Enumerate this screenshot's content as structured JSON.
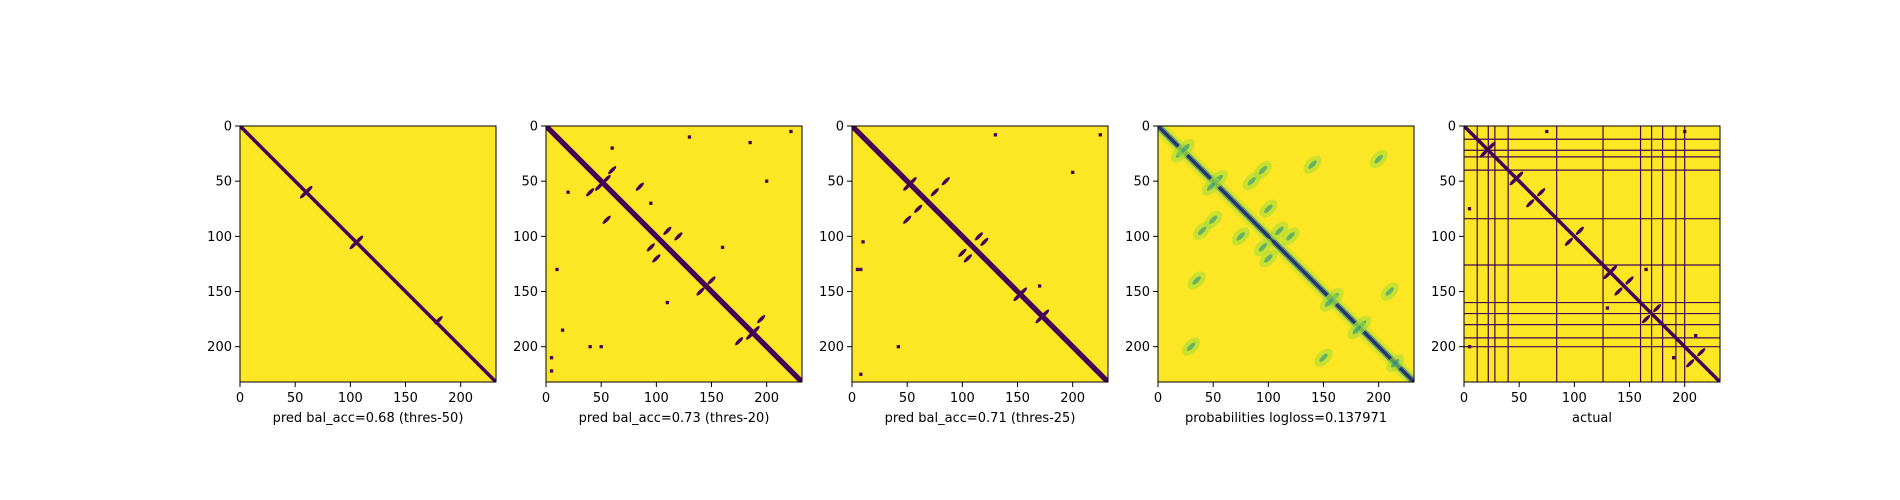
{
  "chart_data": [
    {
      "type": "heatmap",
      "title": "",
      "xlabel": "pred bal_acc=0.68 (thres-50)",
      "ylabel": "",
      "xlim": [
        0,
        232
      ],
      "ylim": [
        232,
        0
      ],
      "xticks": [
        0,
        50,
        100,
        150,
        200
      ],
      "yticks": [
        0,
        50,
        100,
        150,
        200
      ],
      "grid": false,
      "colormap": "viridis",
      "values": "binary",
      "diagonal_band": 2,
      "blobs": [
        [
          62,
          58
        ],
        [
          58,
          62
        ],
        [
          108,
          103
        ],
        [
          103,
          108
        ],
        [
          180,
          176
        ]
      ],
      "spots": []
    },
    {
      "type": "heatmap",
      "title": "",
      "xlabel": "pred bal_acc=0.73 (thres-20)",
      "ylabel": "",
      "xlim": [
        0,
        232
      ],
      "ylim": [
        232,
        0
      ],
      "xticks": [
        0,
        50,
        100,
        150,
        200
      ],
      "yticks": [
        0,
        50,
        100,
        150,
        200
      ],
      "grid": false,
      "colormap": "viridis",
      "values": "binary",
      "diagonal_band": 3,
      "blobs": [
        [
          55,
          48
        ],
        [
          48,
          55
        ],
        [
          85,
          55
        ],
        [
          55,
          85
        ],
        [
          95,
          110
        ],
        [
          110,
          95
        ],
        [
          120,
          100
        ],
        [
          100,
          120
        ],
        [
          140,
          150
        ],
        [
          150,
          140
        ],
        [
          185,
          190
        ],
        [
          190,
          185
        ],
        [
          175,
          195
        ],
        [
          195,
          175
        ],
        [
          60,
          40
        ],
        [
          40,
          60
        ]
      ],
      "spots": [
        [
          130,
          10
        ],
        [
          10,
          130
        ],
        [
          200,
          50
        ],
        [
          50,
          200
        ],
        [
          222,
          5
        ],
        [
          5,
          222
        ],
        [
          5,
          210
        ],
        [
          40,
          200
        ],
        [
          60,
          20
        ],
        [
          20,
          60
        ],
        [
          15,
          185
        ],
        [
          185,
          15
        ],
        [
          95,
          70
        ],
        [
          110,
          160
        ],
        [
          160,
          110
        ]
      ]
    },
    {
      "type": "heatmap",
      "title": "",
      "xlabel": "pred bal_acc=0.71 (thres-25)",
      "ylabel": "",
      "xlim": [
        0,
        232
      ],
      "ylim": [
        232,
        0
      ],
      "xticks": [
        0,
        50,
        100,
        150,
        200
      ],
      "yticks": [
        0,
        50,
        100,
        150,
        200
      ],
      "grid": false,
      "colormap": "viridis",
      "values": "binary",
      "diagonal_band": 3,
      "blobs": [
        [
          55,
          50
        ],
        [
          50,
          55
        ],
        [
          85,
          50
        ],
        [
          50,
          85
        ],
        [
          100,
          115
        ],
        [
          115,
          100
        ],
        [
          120,
          105
        ],
        [
          105,
          120
        ],
        [
          150,
          155
        ],
        [
          155,
          150
        ],
        [
          175,
          170
        ],
        [
          170,
          175
        ],
        [
          60,
          75
        ],
        [
          75,
          60
        ]
      ],
      "spots": [
        [
          130,
          8
        ],
        [
          8,
          130
        ],
        [
          200,
          42
        ],
        [
          42,
          200
        ],
        [
          225,
          8
        ],
        [
          8,
          225
        ],
        [
          5,
          130
        ],
        [
          10,
          105
        ],
        [
          170,
          145
        ]
      ]
    },
    {
      "type": "heatmap",
      "title": "",
      "xlabel": "probabilities logloss=0.137971",
      "ylabel": "",
      "xlim": [
        0,
        232
      ],
      "ylim": [
        232,
        0
      ],
      "xticks": [
        0,
        50,
        100,
        150,
        200
      ],
      "yticks": [
        0,
        50,
        100,
        150,
        200
      ],
      "grid": false,
      "colormap": "viridis",
      "values": "continuous",
      "diagonal_band": 3,
      "blobs": [
        [
          55,
          48
        ],
        [
          48,
          55
        ],
        [
          85,
          50
        ],
        [
          50,
          85
        ],
        [
          95,
          110
        ],
        [
          110,
          95
        ],
        [
          120,
          100
        ],
        [
          100,
          120
        ],
        [
          160,
          155
        ],
        [
          155,
          160
        ],
        [
          185,
          180
        ],
        [
          180,
          185
        ],
        [
          100,
          75
        ],
        [
          75,
          100
        ],
        [
          20,
          25
        ],
        [
          25,
          20
        ],
        [
          200,
          30
        ],
        [
          30,
          200
        ],
        [
          215,
          215
        ],
        [
          140,
          35
        ],
        [
          35,
          140
        ],
        [
          150,
          210
        ],
        [
          210,
          150
        ],
        [
          95,
          40
        ],
        [
          40,
          95
        ]
      ],
      "spots": []
    },
    {
      "type": "heatmap",
      "title": "",
      "xlabel": "actual",
      "ylabel": "",
      "xlim": [
        0,
        232
      ],
      "ylim": [
        232,
        0
      ],
      "xticks": [
        0,
        50,
        100,
        150,
        200
      ],
      "yticks": [
        0,
        50,
        100,
        150,
        200
      ],
      "grid": false,
      "colormap": "viridis",
      "values": "binary",
      "diagonal_band": 2,
      "boundaries": [
        12,
        22,
        28,
        40,
        84,
        126,
        160,
        170,
        180,
        192,
        200
      ],
      "blobs": [
        [
          25,
          18
        ],
        [
          18,
          25
        ],
        [
          45,
          50
        ],
        [
          50,
          45
        ],
        [
          95,
          105
        ],
        [
          105,
          95
        ],
        [
          140,
          150
        ],
        [
          150,
          140
        ],
        [
          165,
          175
        ],
        [
          175,
          165
        ],
        [
          205,
          215
        ],
        [
          215,
          205
        ],
        [
          135,
          130
        ],
        [
          130,
          135
        ],
        [
          60,
          70
        ],
        [
          70,
          60
        ]
      ],
      "spots": [
        [
          200,
          5
        ],
        [
          5,
          200
        ],
        [
          75,
          5
        ],
        [
          5,
          75
        ],
        [
          190,
          210
        ],
        [
          210,
          190
        ],
        [
          130,
          165
        ],
        [
          165,
          130
        ]
      ]
    }
  ]
}
